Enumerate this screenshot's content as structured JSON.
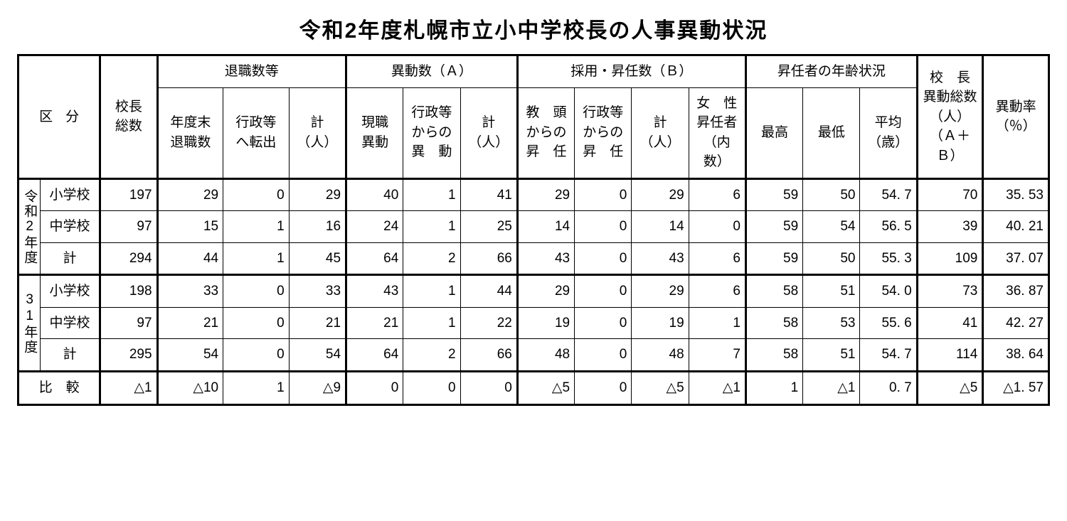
{
  "title": "令和2年度札幌市立小中学校長の人事異動状況",
  "headers": {
    "kubun": "区分",
    "total_principals": "校長\n総数",
    "retire_group": "退職数等",
    "retire_endyear": "年度末\n退職数",
    "retire_admin": "行政等\nへ転出",
    "subtotal_people": "計\n（人）",
    "transfer_group": "異動数（Ａ）",
    "transfer_current": "現職\n異動",
    "transfer_from_admin": "行政等\nからの\n異　動",
    "hire_group": "採用・昇任数（Ｂ）",
    "hire_from_vp": "教　頭\nからの\n昇　任",
    "hire_from_admin": "行政等\nからの\n昇　任",
    "hire_female": "女　性\n昇任者\n（内数）",
    "age_group": "昇任者の年齢状況",
    "age_max": "最高",
    "age_min": "最低",
    "age_avg": "平均\n（歳）",
    "move_total": "校　長\n異動総数\n（人）\n（Ａ＋Ｂ）",
    "move_rate": "異動率\n（％）"
  },
  "row_groups": [
    {
      "label": "令和2年度"
    },
    {
      "label": "31年度"
    }
  ],
  "sub_labels": {
    "elem": "小学校",
    "jhs": "中学校",
    "total": "計"
  },
  "compare_label": "比　較",
  "rows": {
    "r2_elem": [
      "197",
      "29",
      "0",
      "29",
      "40",
      "1",
      "41",
      "29",
      "0",
      "29",
      "6",
      "59",
      "50",
      "54. 7",
      "70",
      "35. 53"
    ],
    "r2_jhs": [
      "97",
      "15",
      "1",
      "16",
      "24",
      "1",
      "25",
      "14",
      "0",
      "14",
      "0",
      "59",
      "54",
      "56. 5",
      "39",
      "40. 21"
    ],
    "r2_tot": [
      "294",
      "44",
      "1",
      "45",
      "64",
      "2",
      "66",
      "43",
      "0",
      "43",
      "6",
      "59",
      "50",
      "55. 3",
      "109",
      "37. 07"
    ],
    "h31_elem": [
      "198",
      "33",
      "0",
      "33",
      "43",
      "1",
      "44",
      "29",
      "0",
      "29",
      "6",
      "58",
      "51",
      "54. 0",
      "73",
      "36. 87"
    ],
    "h31_jhs": [
      "97",
      "21",
      "0",
      "21",
      "21",
      "1",
      "22",
      "19",
      "0",
      "19",
      "1",
      "58",
      "53",
      "55. 6",
      "41",
      "42. 27"
    ],
    "h31_tot": [
      "295",
      "54",
      "0",
      "54",
      "64",
      "2",
      "66",
      "48",
      "0",
      "48",
      "7",
      "58",
      "51",
      "54. 7",
      "114",
      "38. 64"
    ],
    "compare": [
      "△1",
      "△10",
      "1",
      "△9",
      "0",
      "0",
      "0",
      "△5",
      "0",
      "△5",
      "△1",
      "1",
      "△1",
      "0. 7",
      "△5",
      "△1. 57"
    ]
  }
}
